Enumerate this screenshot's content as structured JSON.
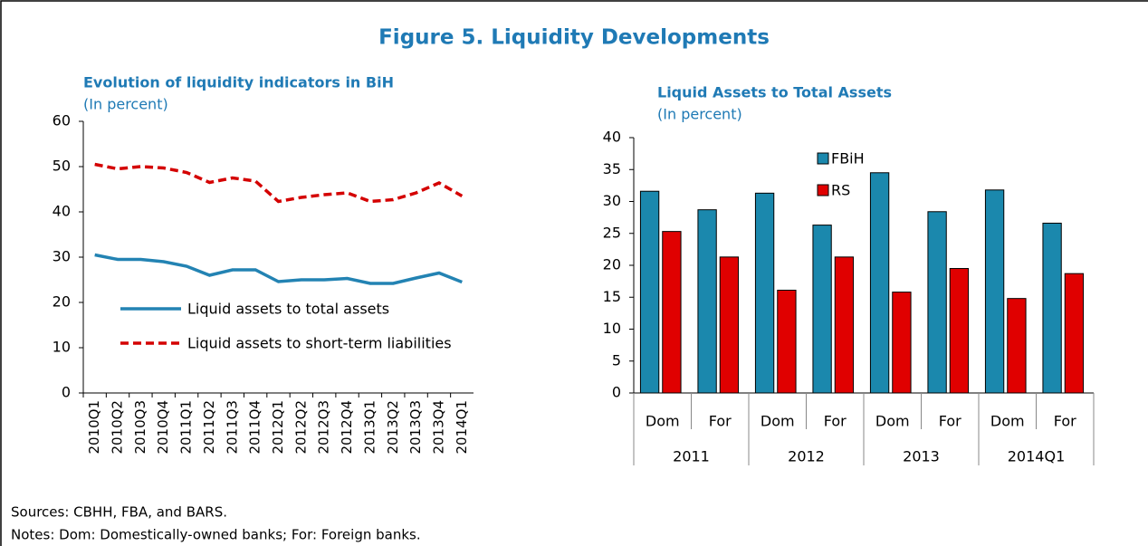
{
  "title": "Figure 5. Liquidity Developments",
  "chart_data": [
    {
      "type": "line",
      "title": "Evolution of liquidity indicators  in BiH",
      "subtitle": "(In percent)",
      "categories": [
        "2010Q1",
        "2010Q2",
        "2010Q3",
        "2010Q4",
        "2011Q1",
        "2011Q2",
        "2011Q3",
        "2011Q4",
        "2012Q1",
        "2012Q2",
        "2012Q3",
        "2012Q4",
        "2013Q1",
        "2013Q2",
        "2013Q3",
        "2013Q4",
        "2014Q1"
      ],
      "series": [
        {
          "name": "Liquid assets to total assets",
          "color": "#2383b3",
          "dash": false,
          "values": [
            30.5,
            29.5,
            29.5,
            29,
            28,
            26,
            27.2,
            27.2,
            24.6,
            25,
            25,
            25.3,
            24.2,
            24.2,
            25.4,
            26.5,
            24.5
          ]
        },
        {
          "name": "Liquid assets to short-term liabilities",
          "color": "#d40000",
          "dash": true,
          "values": [
            50.5,
            49.5,
            50,
            49.7,
            48.7,
            46.5,
            47.5,
            46.8,
            42.3,
            43.2,
            43.8,
            44.2,
            42.3,
            42.7,
            44.2,
            46.4,
            43.5
          ]
        }
      ],
      "ylim": [
        0,
        60
      ],
      "yticks": [
        0,
        10,
        20,
        30,
        40,
        50,
        60
      ]
    },
    {
      "type": "bar",
      "title": "Liquid Assets  to Total Assets",
      "subtitle": "(In percent)",
      "categories": [
        "Dom",
        "For",
        "Dom",
        "For",
        "Dom",
        "For",
        "Dom",
        "For"
      ],
      "groups": [
        "2011",
        "2012",
        "2013",
        "2014Q1"
      ],
      "series": [
        {
          "name": "FBiH",
          "color": "#1b88ad",
          "values": [
            31.6,
            28.7,
            31.3,
            26.3,
            34.5,
            28.4,
            31.8,
            26.6
          ]
        },
        {
          "name": "RS",
          "color": "#e00000",
          "values": [
            25.3,
            21.3,
            16.1,
            21.3,
            15.8,
            19.5,
            14.8,
            18.7
          ]
        }
      ],
      "ylim": [
        0,
        40
      ],
      "yticks": [
        0,
        5,
        10,
        15,
        20,
        25,
        30,
        35,
        40
      ]
    }
  ],
  "sources": "Sources: CBHH, FBA, and BARS.",
  "notes": "Notes: Dom: Domestically-owned banks; For: Foreign banks."
}
